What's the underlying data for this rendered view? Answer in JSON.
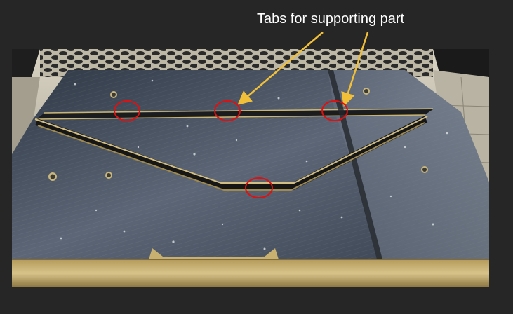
{
  "annotation": {
    "label": "Tabs for supporting part",
    "arrow_color": "#f2c038",
    "circle_color": "#e01010"
  },
  "photo": {
    "subject": "metal plate with wire-cut V-shaped part held by small tabs",
    "tab_markers_count": 4
  }
}
